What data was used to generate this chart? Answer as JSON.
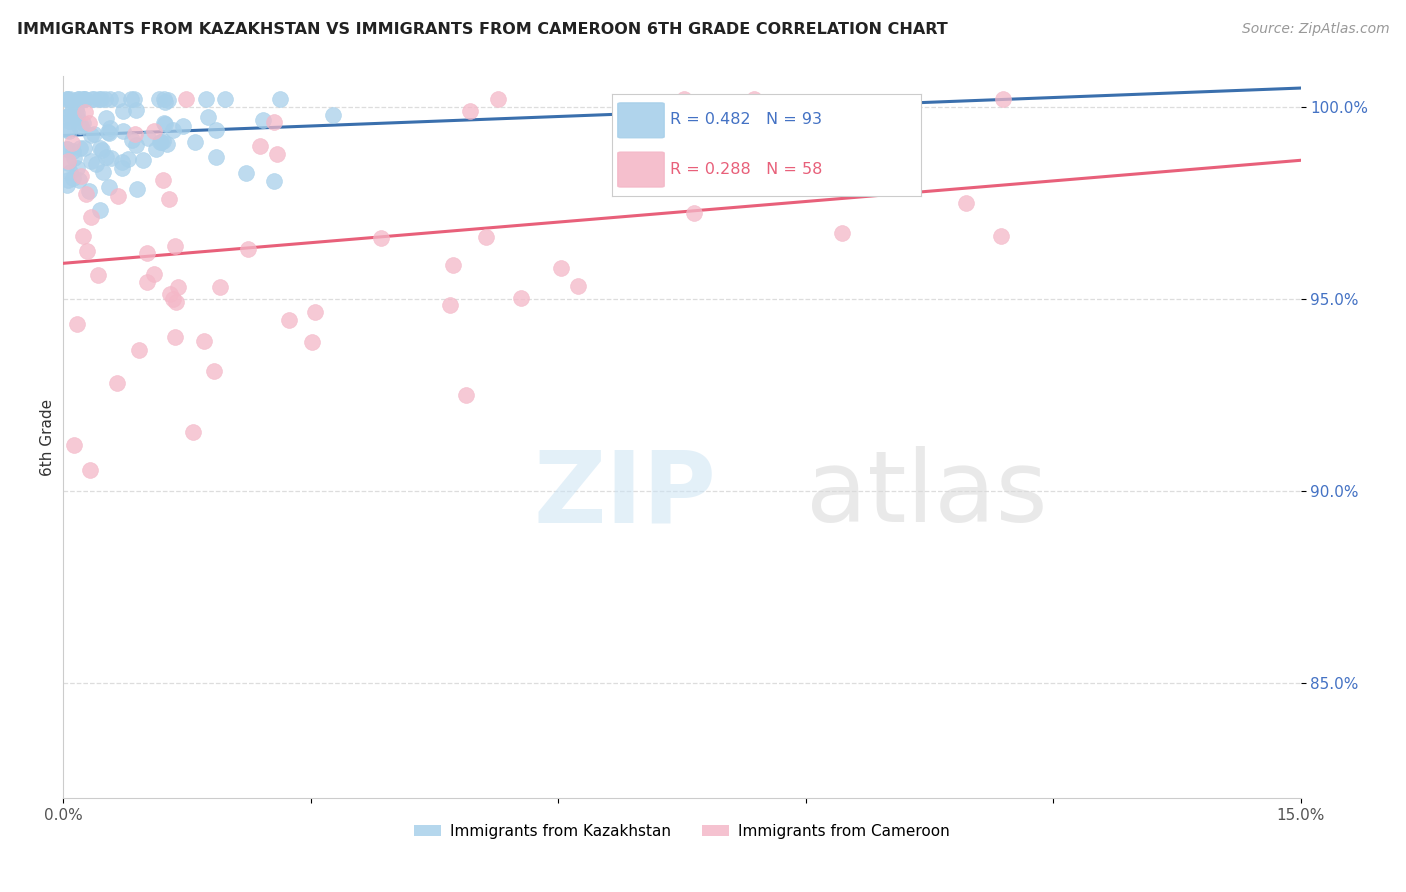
{
  "title": "IMMIGRANTS FROM KAZAKHSTAN VS IMMIGRANTS FROM CAMEROON 6TH GRADE CORRELATION CHART",
  "source": "Source: ZipAtlas.com",
  "ylabel": "6th Grade",
  "xlim": [
    0.0,
    0.15
  ],
  "ylim": [
    0.82,
    1.008
  ],
  "kazakhstan_R": 0.482,
  "kazakhstan_N": 93,
  "cameroon_R": 0.288,
  "cameroon_N": 58,
  "kazakhstan_color": "#a8d0ea",
  "cameroon_color": "#f4b8c8",
  "kazakhstan_line_color": "#3a6fad",
  "cameroon_line_color": "#e8607a",
  "background_color": "#ffffff",
  "grid_color": "#dddddd",
  "ytick_color": "#4472c4",
  "legend_border_color": "#cccccc"
}
